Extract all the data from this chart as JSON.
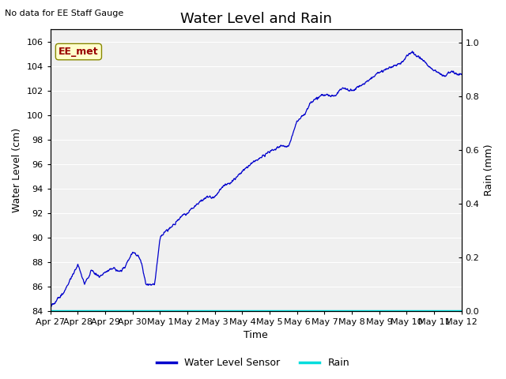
{
  "title": "Water Level and Rain",
  "top_left_text": "No data for EE Staff Gauge",
  "annotation_text": "EE_met",
  "annotation_bg": "#ffffcc",
  "annotation_fg": "#990000",
  "xlabel": "Time",
  "ylabel_left": "Water Level (cm)",
  "ylabel_right": "Rain (mm)",
  "ylim_left": [
    84,
    107
  ],
  "ylim_right": [
    0.0,
    1.05
  ],
  "yticks_left": [
    84,
    86,
    88,
    90,
    92,
    94,
    96,
    98,
    100,
    102,
    104,
    106
  ],
  "yticks_right": [
    0.0,
    0.2,
    0.4,
    0.6,
    0.8,
    1.0
  ],
  "line_color_water": "#0000cc",
  "line_color_rain": "#00dddd",
  "legend_labels": [
    "Water Level Sensor",
    "Rain"
  ],
  "plot_bg_color": "#f0f0f0",
  "grid_color": "#ffffff",
  "title_fontsize": 13,
  "axis_fontsize": 9,
  "tick_fontsize": 8
}
